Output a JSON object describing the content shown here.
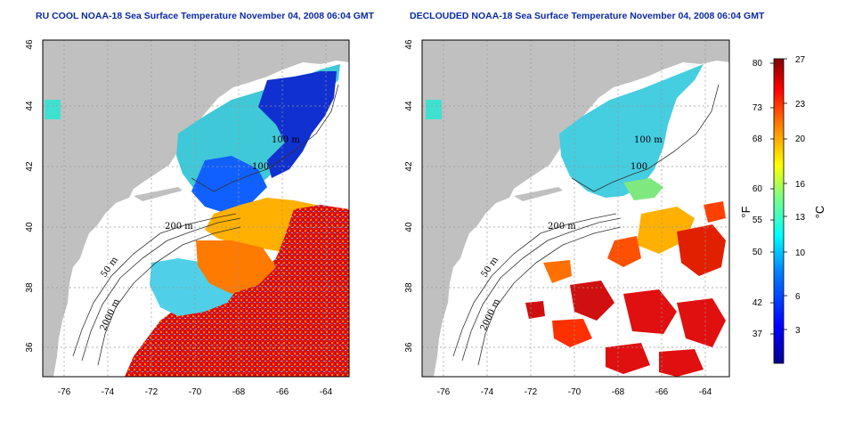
{
  "maps": [
    {
      "id": "left",
      "title": "RU COOL NOAA-18 Sea Surface Temperature November 04, 2008 06:04 GMT",
      "x_ticks": [
        "-76",
        "-74",
        "-72",
        "-70",
        "-68",
        "-66",
        "-64"
      ],
      "y_ticks": [
        "36",
        "38",
        "40",
        "42",
        "44",
        "46"
      ],
      "contour_labels": [
        "100 m",
        "200 m",
        "50 m",
        "2000 m",
        "100"
      ]
    },
    {
      "id": "right",
      "title": "DECLOUDED NOAA-18 Sea Surface Temperature November 04, 2008 06:04 GMT",
      "x_ticks": [
        "-76",
        "-74",
        "-72",
        "-70",
        "-68",
        "-66",
        "-64"
      ],
      "y_ticks": [
        "36",
        "38",
        "40",
        "42",
        "44",
        "46"
      ],
      "contour_labels": [
        "100 m",
        "200 m",
        "50 m",
        "2000 m",
        "100"
      ]
    }
  ],
  "colorbar": {
    "fahrenheit_label": "°F",
    "celsius_label": "°C",
    "fahrenheit_ticks": [
      "80",
      "73",
      "68",
      "60",
      "55",
      "50",
      "42",
      "37"
    ],
    "celsius_ticks": [
      "27",
      "23",
      "20",
      "16",
      "13",
      "10",
      "6",
      "3"
    ],
    "colors": [
      "#00008f",
      "#0000ff",
      "#0080ff",
      "#00ffff",
      "#80ff80",
      "#ffff00",
      "#ff8000",
      "#ff0000",
      "#800000"
    ]
  },
  "colors": {
    "land": "#c0c0c0",
    "ocean_cloud": "#ffffff",
    "title": "#0a2aa8"
  }
}
